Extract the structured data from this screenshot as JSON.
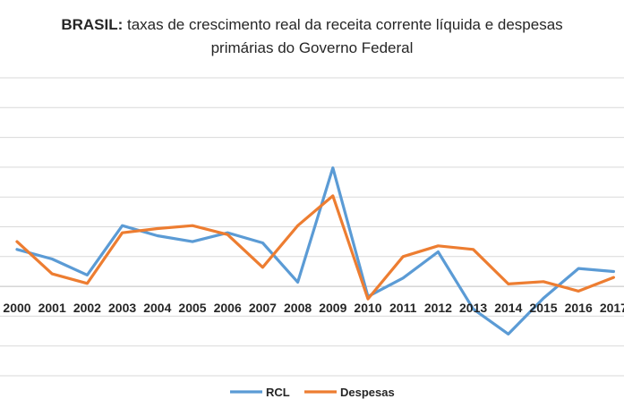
{
  "chart_data": {
    "type": "line",
    "title_bold": "BRASIL:",
    "title_line1": "taxas de crescimento real da receita corrente líquida e despesas",
    "title_line2": "primárias do Governo Federal",
    "xlabel": "",
    "ylabel": "",
    "categories": [
      "2000",
      "2001",
      "2002",
      "2003",
      "2004",
      "2005",
      "2006",
      "2007",
      "2008",
      "2009",
      "2010",
      "2011",
      "2012",
      "2013",
      "2014",
      "2015",
      "2016",
      "2017"
    ],
    "ylim": [
      -15,
      35
    ],
    "grid": true,
    "legend_position": "bottom",
    "series": [
      {
        "name": "RCL",
        "color": "#5b9bd5",
        "values": [
          6.2,
          4.6,
          1.9,
          10.2,
          8.5,
          7.5,
          9.0,
          7.3,
          0.7,
          19.9,
          -1.7,
          1.4,
          5.8,
          -3.8,
          -8.0,
          -2.0,
          3.0,
          2.5
        ]
      },
      {
        "name": "Despesas",
        "color": "#ed7d31",
        "values": [
          7.5,
          2.1,
          0.5,
          9.0,
          9.7,
          10.2,
          8.7,
          3.2,
          10.2,
          15.2,
          -2.1,
          5.0,
          6.8,
          6.2,
          0.4,
          0.8,
          -0.8,
          1.5
        ]
      }
    ]
  }
}
